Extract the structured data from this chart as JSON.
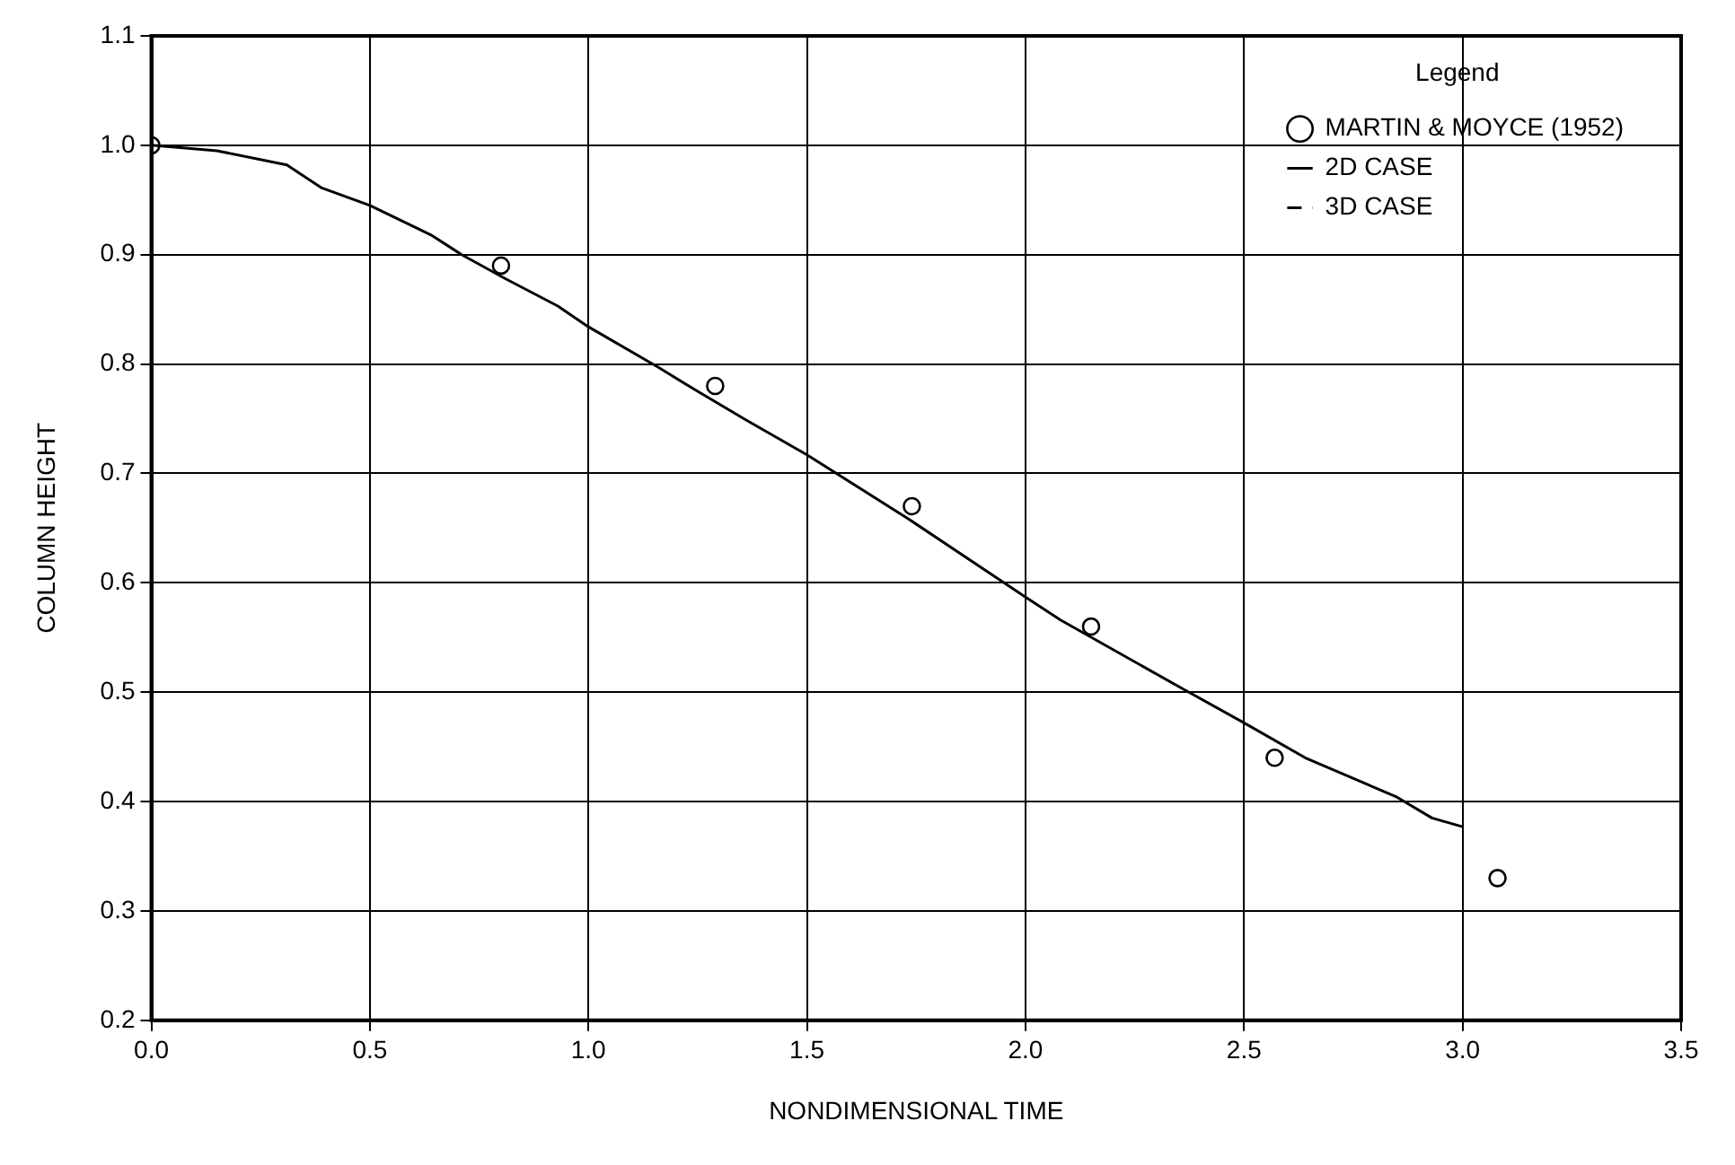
{
  "chart_data": {
    "type": "line",
    "xlabel": "NONDIMENSIONAL TIME",
    "ylabel": "COLUMN HEIGHT",
    "legend_title": "Legend",
    "xlim": [
      0,
      3.5
    ],
    "xticks": [
      {
        "value": 0,
        "label": "0.0"
      },
      0.5,
      {
        "value": 1,
        "label": "1.0"
      },
      1.5,
      {
        "value": 2,
        "label": "2.0"
      },
      2.5,
      {
        "value": 3,
        "label": "3.0"
      },
      3.5
    ],
    "ylim": [
      0.2,
      1.1
    ],
    "yticks": [
      0.2,
      0.3,
      0.4,
      0.5,
      0.6,
      0.7,
      0.8,
      0.9,
      {
        "value": 1,
        "label": "1.0"
      },
      1.1
    ],
    "grid": true,
    "legend": "top right",
    "series": [
      {
        "name": "MARTIN & MOYCE (1952)",
        "type": "scatter",
        "marker": "circle",
        "color": "#000000",
        "x": [
          0,
          0.8,
          1.29,
          1.74,
          2.15,
          2.57,
          3.08
        ],
        "values": [
          1.0,
          0.89,
          0.78,
          0.67,
          0.56,
          0.44,
          0.33
        ]
      },
      {
        "name": "2D CASE",
        "line_style": "solid",
        "color": "#000000",
        "x": [
          0,
          0.15,
          0.31,
          0.39,
          0.5,
          0.64,
          0.71,
          0.81,
          0.93,
          1.0,
          1.16,
          1.25,
          1.36,
          1.5,
          1.73,
          1.94,
          2.0,
          2.08,
          2.36,
          2.5,
          2.64,
          2.85,
          2.93,
          3.0
        ],
        "values": [
          1.0,
          0.995,
          0.982,
          0.961,
          0.945,
          0.918,
          0.9,
          0.878,
          0.853,
          0.834,
          0.797,
          0.775,
          0.749,
          0.717,
          0.659,
          0.603,
          0.587,
          0.566,
          0.503,
          0.472,
          0.44,
          0.404,
          0.385,
          0.377
        ]
      },
      {
        "name": "3D CASE",
        "line_style": "dashed",
        "color": "#000000"
      }
    ]
  }
}
